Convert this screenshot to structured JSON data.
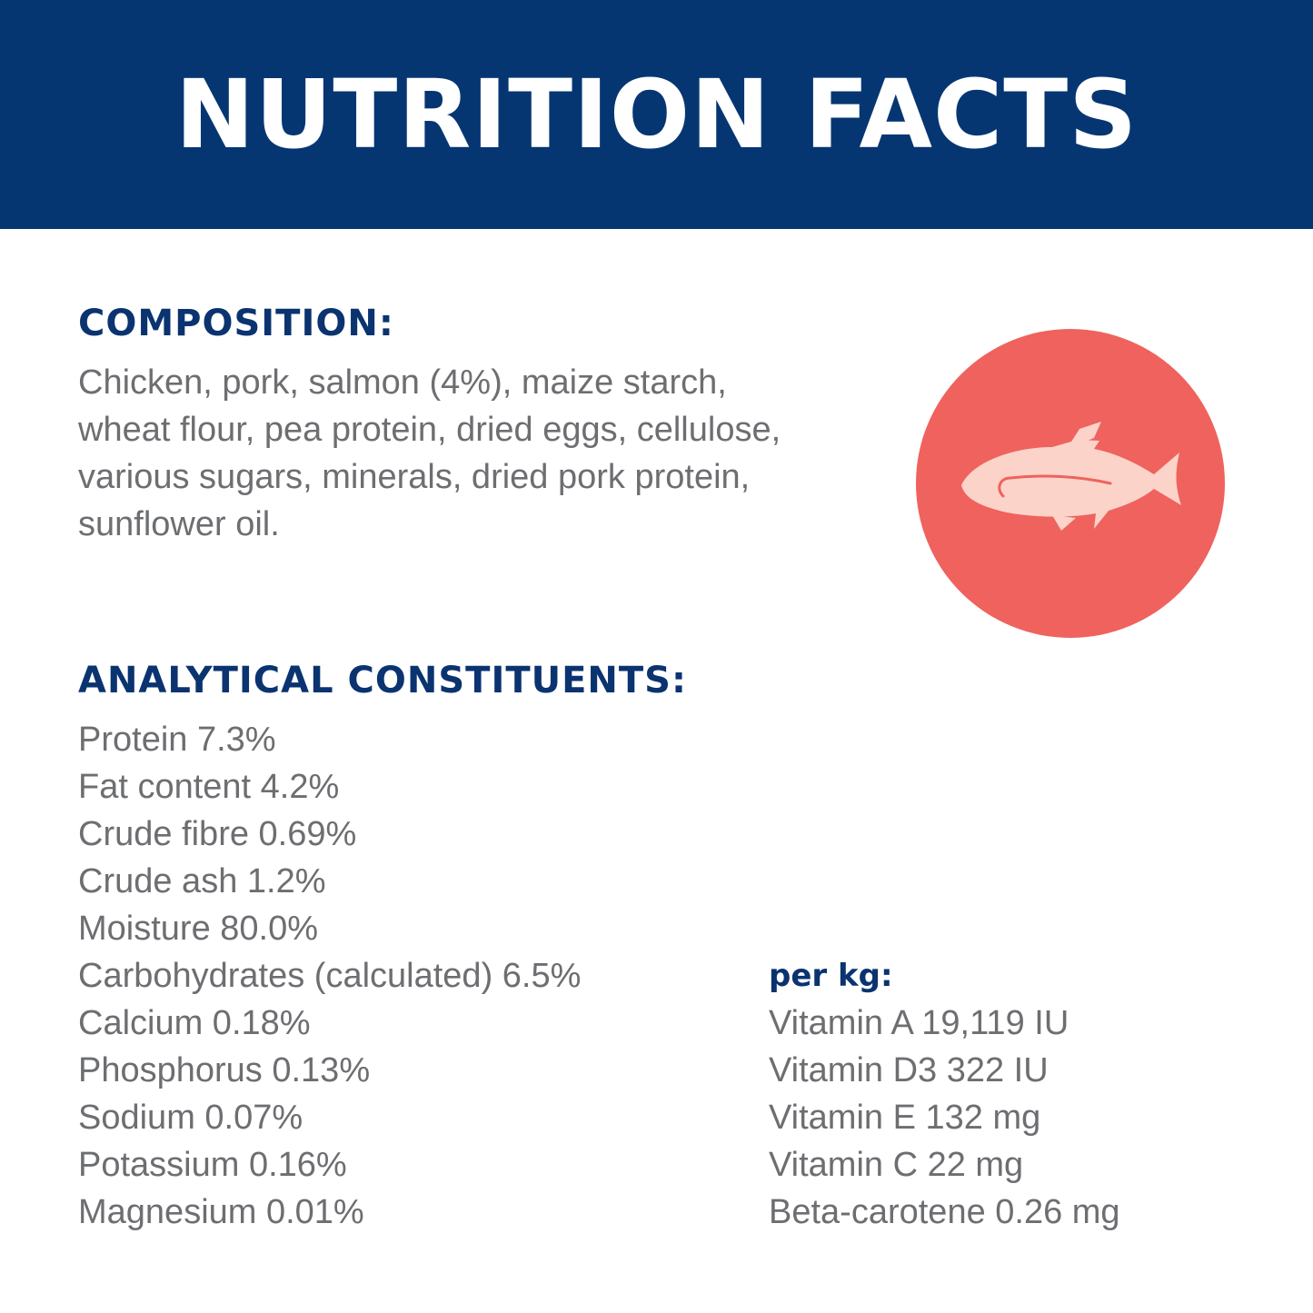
{
  "header": {
    "title": "NUTRITION FACTS",
    "background_color": "#063672"
  },
  "composition": {
    "heading": "COMPOSITION:",
    "lines": [
      "Chicken, pork, salmon (4%), maize starch,",
      "wheat flour, pea protein, dried eggs, cellulose,",
      "various sugars, minerals, dried pork protein,",
      "sunflower oil."
    ]
  },
  "analytical_constituents": {
    "heading": "ANALYTICAL CONSTITUENTS:",
    "items": [
      "Protein 7.3%",
      "Fat content 4.2%",
      "Crude fibre 0.69%",
      "Crude ash 1.2%",
      "Moisture 80.0%",
      "Carbohydrates (calculated) 6.5%",
      "Calcium 0.18%",
      "Phosphorus 0.13%",
      "Sodium 0.07%",
      "Potassium 0.16%",
      "Magnesium 0.01%"
    ]
  },
  "per_kg": {
    "heading": "per kg:",
    "items": [
      "Vitamin A 19,119 IU",
      "Vitamin D3 322 IU",
      "Vitamin E 132 mg",
      "Vitamin C 22 mg",
      "Beta-carotene 0.26 mg"
    ]
  },
  "badge": {
    "icon": "fish-icon",
    "circle_color": "#ef625d",
    "fish_color": "#fbd3c9"
  },
  "colors": {
    "heading": "#0a3370",
    "body_text": "#6d6e71"
  }
}
